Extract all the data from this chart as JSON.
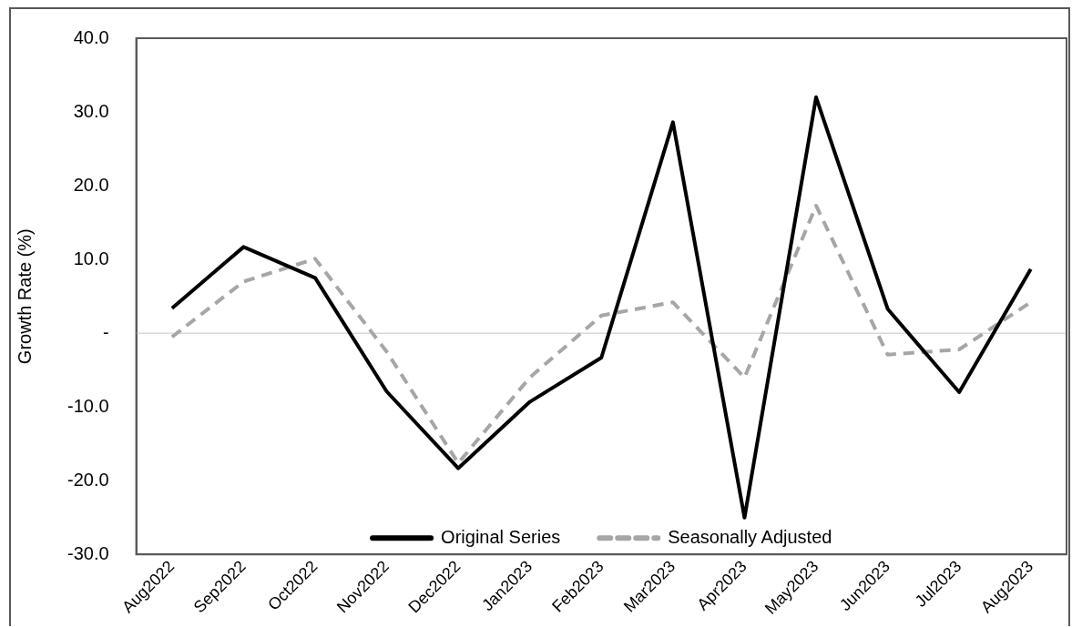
{
  "chart_data": {
    "type": "line",
    "ylabel": "Growth Rate (%)",
    "categories": [
      "Aug2022",
      "Sep2022",
      "Oct2022",
      "Nov2022",
      "Dec2022",
      "Jan2023",
      "Feb2023",
      "Mar2023",
      "Apr2023",
      "May2023",
      "Jun2023",
      "Jul2023",
      "Aug2023"
    ],
    "series": [
      {
        "name": "Original Series",
        "color": "#000000",
        "line_style": "solid",
        "values": [
          3.4,
          11.7,
          7.5,
          -7.9,
          -18.3,
          -9.3,
          -3.3,
          28.6,
          -25.0,
          32.0,
          3.3,
          -8.0,
          8.7
        ]
      },
      {
        "name": "Seasonally Adjusted",
        "color": "#a6a6a6",
        "line_style": "dashed",
        "values": [
          -0.5,
          7.0,
          10.1,
          -2.5,
          -17.6,
          -6.0,
          2.4,
          4.2,
          -6.0,
          17.3,
          -2.9,
          -2.2,
          4.2
        ]
      }
    ],
    "ylim": [
      -30,
      40
    ],
    "yticks": [
      {
        "value": -30,
        "label": "-30.0"
      },
      {
        "value": -20,
        "label": "-20.0"
      },
      {
        "value": -10,
        "label": "-10.0"
      },
      {
        "value": 0,
        "label": "-"
      },
      {
        "value": 10,
        "label": "10.0"
      },
      {
        "value": 20,
        "label": "20.0"
      },
      {
        "value": 30,
        "label": "30.0"
      },
      {
        "value": 40,
        "label": "40.0"
      }
    ],
    "ref_lines": [
      {
        "axis": "y",
        "value": 0,
        "color": "#d9d9d9"
      }
    ],
    "grid": false,
    "legend": "bottom",
    "marker": "none"
  }
}
